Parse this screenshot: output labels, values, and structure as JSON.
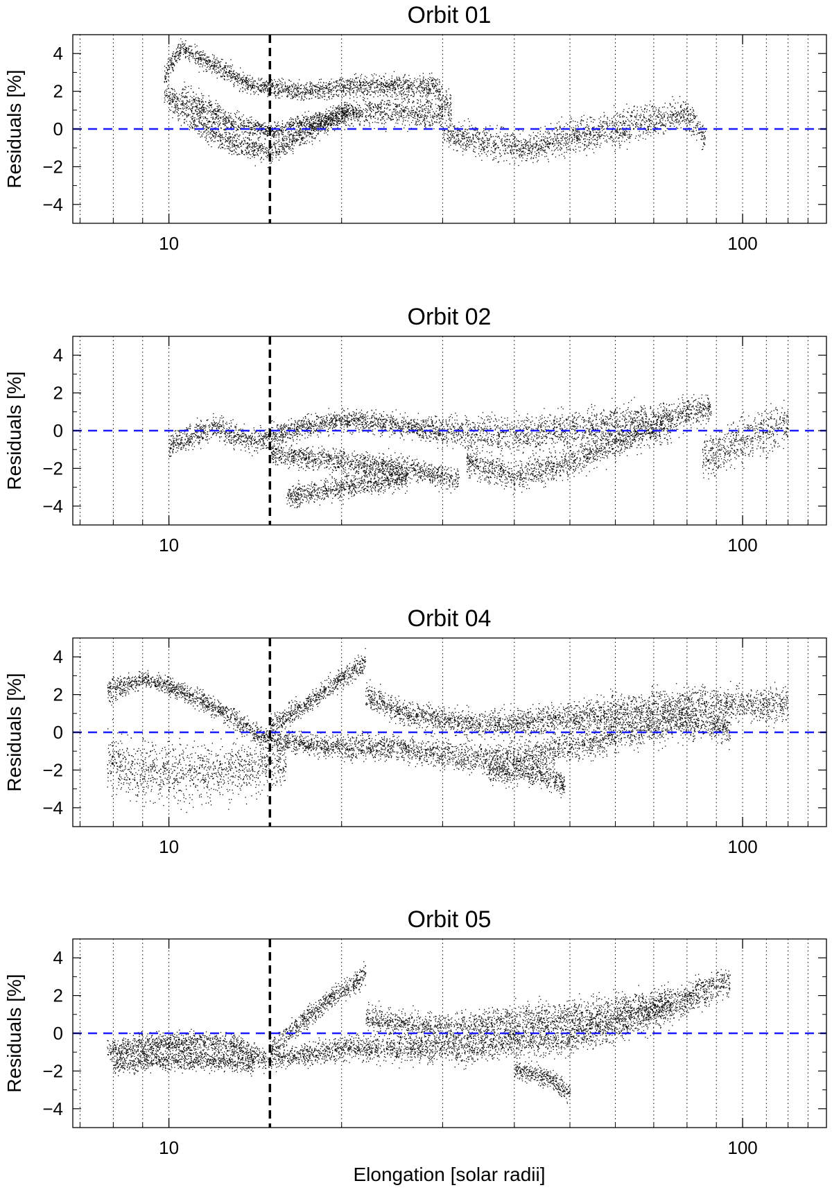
{
  "figure": {
    "xlabel": "Elongation [solar radii]"
  },
  "colors": {
    "points": "#000000",
    "zero_line": "#1a1aff",
    "elongation_marker": "#000000",
    "grid": "#000000"
  },
  "chart_data": [
    {
      "type": "scatter",
      "title": "Orbit 01",
      "ylabel": "Residuals [%]",
      "xlabel": "",
      "xscale": "log",
      "xlim": [
        6.8,
        140
      ],
      "ylim": [
        -5,
        5
      ],
      "xticks": [
        {
          "value": 10,
          "label": "10"
        },
        {
          "value": 100,
          "label": "100"
        }
      ],
      "yticks": [
        {
          "value": -4,
          "label": "−4"
        },
        {
          "value": -2,
          "label": "−2"
        },
        {
          "value": 0,
          "label": "0"
        },
        {
          "value": 2,
          "label": "2"
        },
        {
          "value": 4,
          "label": "4"
        }
      ],
      "grid_x": [
        7,
        8,
        9,
        10,
        20,
        30,
        40,
        50,
        60,
        70,
        80,
        90,
        100,
        110,
        120,
        130
      ],
      "reference_lines": {
        "zero_line_y": 0,
        "vertical_marker_x": 15
      },
      "series": [
        {
          "band": [
            [
              9.8,
              2.8,
              0.8
            ],
            [
              10.5,
              4.3,
              0.6
            ],
            [
              12,
              3.4,
              0.7
            ],
            [
              14,
              2.3,
              0.6
            ],
            [
              17,
              2.0,
              0.6
            ],
            [
              22,
              2.3,
              0.7
            ],
            [
              29,
              2.3,
              0.8
            ],
            [
              31,
              1.0,
              1.2
            ]
          ]
        },
        {
          "band": [
            [
              9.8,
              2.0,
              1.0
            ],
            [
              11,
              0.5,
              1.0
            ],
            [
              13,
              -0.8,
              0.8
            ],
            [
              15,
              -1.2,
              0.8
            ],
            [
              17,
              -0.4,
              0.7
            ],
            [
              20,
              0.8,
              0.8
            ],
            [
              25,
              1.0,
              1.0
            ],
            [
              30,
              0.8,
              1.0
            ]
          ]
        },
        {
          "band": [
            [
              10.5,
              1.8,
              0.8
            ],
            [
              13,
              0.3,
              0.8
            ],
            [
              15,
              -0.1,
              0.6
            ],
            [
              18,
              0.4,
              0.6
            ],
            [
              21,
              1.0,
              0.7
            ]
          ]
        },
        {
          "band": [
            [
              30,
              -0.2,
              1.0
            ],
            [
              36,
              -0.8,
              1.0
            ],
            [
              42,
              -1.0,
              1.0
            ],
            [
              50,
              -0.4,
              1.2
            ],
            [
              60,
              0.0,
              1.2
            ],
            [
              70,
              0.5,
              1.2
            ],
            [
              80,
              0.8,
              1.0
            ],
            [
              86,
              -0.5,
              1.0
            ]
          ]
        }
      ]
    },
    {
      "type": "scatter",
      "title": "Orbit 02",
      "ylabel": "Residuals [%]",
      "xlabel": "",
      "xscale": "log",
      "xlim": [
        6.8,
        140
      ],
      "ylim": [
        -5,
        5
      ],
      "xticks": [
        {
          "value": 10,
          "label": "10"
        },
        {
          "value": 100,
          "label": "100"
        }
      ],
      "yticks": [
        {
          "value": -4,
          "label": "−4"
        },
        {
          "value": -2,
          "label": "−2"
        },
        {
          "value": 0,
          "label": "0"
        },
        {
          "value": 2,
          "label": "2"
        },
        {
          "value": 4,
          "label": "4"
        }
      ],
      "grid_x": [
        7,
        8,
        9,
        10,
        20,
        30,
        40,
        50,
        60,
        70,
        80,
        90,
        100,
        110,
        120,
        130
      ],
      "reference_lines": {
        "zero_line_y": 0,
        "vertical_marker_x": 15
      },
      "series": [
        {
          "band": [
            [
              10,
              -0.8,
              0.8
            ],
            [
              12,
              0.2,
              0.8
            ],
            [
              14,
              -0.6,
              0.8
            ],
            [
              16,
              0.0,
              0.7
            ],
            [
              20,
              0.6,
              0.7
            ],
            [
              25,
              0.3,
              0.8
            ],
            [
              30,
              0.0,
              1.0
            ],
            [
              40,
              -0.2,
              1.2
            ],
            [
              55,
              0.3,
              1.2
            ],
            [
              70,
              0.6,
              1.2
            ],
            [
              88,
              1.2,
              1.0
            ]
          ]
        },
        {
          "band": [
            [
              15,
              -1.2,
              0.7
            ],
            [
              20,
              -1.6,
              0.8
            ],
            [
              26,
              -2.0,
              0.8
            ],
            [
              32,
              -2.6,
              0.8
            ]
          ]
        },
        {
          "band": [
            [
              33,
              -1.6,
              1.0
            ],
            [
              40,
              -2.4,
              1.0
            ],
            [
              48,
              -1.8,
              1.0
            ],
            [
              56,
              -1.0,
              1.0
            ],
            [
              65,
              -0.3,
              1.0
            ],
            [
              75,
              0.2,
              1.0
            ]
          ]
        },
        {
          "band": [
            [
              16,
              -3.5,
              0.8
            ],
            [
              20,
              -3.0,
              0.8
            ],
            [
              26,
              -2.5,
              0.8
            ]
          ]
        },
        {
          "band": [
            [
              85,
              -1.5,
              1.5
            ],
            [
              100,
              -0.5,
              1.5
            ],
            [
              120,
              0.5,
              1.5
            ]
          ]
        }
      ]
    },
    {
      "type": "scatter",
      "title": "Orbit 04",
      "ylabel": "Residuals [%]",
      "xlabel": "",
      "xscale": "log",
      "xlim": [
        6.8,
        140
      ],
      "ylim": [
        -5,
        5
      ],
      "xticks": [
        {
          "value": 10,
          "label": "10"
        },
        {
          "value": 100,
          "label": "100"
        }
      ],
      "yticks": [
        {
          "value": -4,
          "label": "−4"
        },
        {
          "value": -2,
          "label": "−2"
        },
        {
          "value": 0,
          "label": "0"
        },
        {
          "value": 2,
          "label": "2"
        },
        {
          "value": 4,
          "label": "4"
        }
      ],
      "grid_x": [
        7,
        8,
        9,
        10,
        20,
        30,
        40,
        50,
        60,
        70,
        80,
        90,
        100,
        110,
        120,
        130
      ],
      "reference_lines": {
        "zero_line_y": 0,
        "vertical_marker_x": 15
      },
      "series": [
        {
          "band": [
            [
              7.8,
              2.2,
              0.8
            ],
            [
              9,
              2.8,
              0.6
            ],
            [
              10,
              2.5,
              0.6
            ],
            [
              11.5,
              1.6,
              0.7
            ],
            [
              13,
              0.8,
              0.7
            ],
            [
              14,
              0.0,
              0.7
            ],
            [
              15,
              -0.3,
              0.6
            ]
          ]
        },
        {
          "band": [
            [
              15,
              0.3,
              0.7
            ],
            [
              17,
              1.3,
              0.7
            ],
            [
              19,
              2.4,
              0.7
            ],
            [
              21,
              3.3,
              0.8
            ],
            [
              22,
              3.8,
              0.7
            ]
          ]
        },
        {
          "band": [
            [
              15,
              -0.4,
              0.6
            ],
            [
              20,
              -0.8,
              0.8
            ],
            [
              25,
              -0.8,
              0.9
            ],
            [
              30,
              -1.2,
              0.9
            ],
            [
              36,
              -1.4,
              1.0
            ],
            [
              44,
              -1.2,
              1.1
            ],
            [
              52,
              -0.6,
              1.2
            ],
            [
              65,
              0.2,
              1.2
            ],
            [
              80,
              0.6,
              1.2
            ],
            [
              95,
              0.2,
              1.0
            ]
          ]
        },
        {
          "band": [
            [
              22,
              2.0,
              0.8
            ],
            [
              26,
              1.0,
              0.8
            ],
            [
              32,
              0.5,
              0.9
            ],
            [
              40,
              0.5,
              1.0
            ],
            [
              50,
              0.8,
              1.0
            ],
            [
              65,
              1.2,
              1.2
            ],
            [
              85,
              1.5,
              1.2
            ],
            [
              120,
              1.5,
              1.2
            ]
          ]
        },
        {
          "band": [
            [
              36,
              -2.0,
              0.8
            ],
            [
              44,
              -2.2,
              0.8
            ],
            [
              49,
              -2.8,
              0.8
            ]
          ]
        },
        {
          "band": [
            [
              7.8,
              -1.5,
              2.0
            ],
            [
              9,
              -2.0,
              2.0
            ],
            [
              11,
              -2.2,
              2.0
            ],
            [
              13,
              -2.0,
              1.8
            ],
            [
              16,
              -1.5,
              1.5
            ]
          ]
        }
      ]
    },
    {
      "type": "scatter",
      "title": "Orbit 05",
      "ylabel": "Residuals [%]",
      "xlabel": "Elongation [solar radii]",
      "xscale": "log",
      "xlim": [
        6.8,
        140
      ],
      "ylim": [
        -5,
        5
      ],
      "xticks": [
        {
          "value": 10,
          "label": "10"
        },
        {
          "value": 100,
          "label": "100"
        }
      ],
      "yticks": [
        {
          "value": -4,
          "label": "−4"
        },
        {
          "value": -2,
          "label": "−2"
        },
        {
          "value": 0,
          "label": "0"
        },
        {
          "value": 2,
          "label": "2"
        },
        {
          "value": 4,
          "label": "4"
        }
      ],
      "grid_x": [
        7,
        8,
        9,
        10,
        20,
        30,
        40,
        50,
        60,
        70,
        80,
        90,
        100,
        110,
        120,
        130
      ],
      "reference_lines": {
        "zero_line_y": 0,
        "vertical_marker_x": 15
      },
      "series": [
        {
          "band": [
            [
              7.8,
              -1.0,
              0.7
            ],
            [
              9,
              -0.6,
              0.7
            ],
            [
              11,
              -0.4,
              0.7
            ],
            [
              13,
              -0.6,
              0.7
            ],
            [
              15,
              -1.5,
              0.7
            ]
          ]
        },
        {
          "band": [
            [
              8,
              -1.6,
              0.7
            ],
            [
              10,
              -1.4,
              0.7
            ],
            [
              12,
              -1.4,
              0.7
            ],
            [
              14,
              -1.6,
              0.7
            ]
          ]
        },
        {
          "band": [
            [
              15,
              -0.8,
              0.7
            ],
            [
              17,
              0.6,
              0.7
            ],
            [
              19,
              1.8,
              0.7
            ],
            [
              21,
              2.6,
              0.7
            ],
            [
              22,
              3.2,
              0.7
            ]
          ]
        },
        {
          "band": [
            [
              15,
              -1.4,
              0.7
            ],
            [
              20,
              -0.8,
              0.8
            ],
            [
              25,
              -0.8,
              0.9
            ],
            [
              32,
              -0.8,
              1.0
            ],
            [
              40,
              -0.5,
              1.0
            ],
            [
              50,
              -0.2,
              1.1
            ],
            [
              60,
              0.4,
              1.1
            ],
            [
              72,
              1.2,
              1.1
            ],
            [
              85,
              2.2,
              1.1
            ],
            [
              95,
              2.8,
              1.0
            ]
          ]
        },
        {
          "band": [
            [
              22,
              0.8,
              0.9
            ],
            [
              30,
              0.2,
              1.0
            ],
            [
              40,
              0.6,
              1.2
            ],
            [
              55,
              1.0,
              1.2
            ],
            [
              75,
              1.6,
              1.2
            ]
          ]
        },
        {
          "band": [
            [
              40,
              -1.8,
              0.7
            ],
            [
              46,
              -2.4,
              0.7
            ],
            [
              50,
              -3.2,
              0.7
            ]
          ]
        }
      ]
    }
  ]
}
